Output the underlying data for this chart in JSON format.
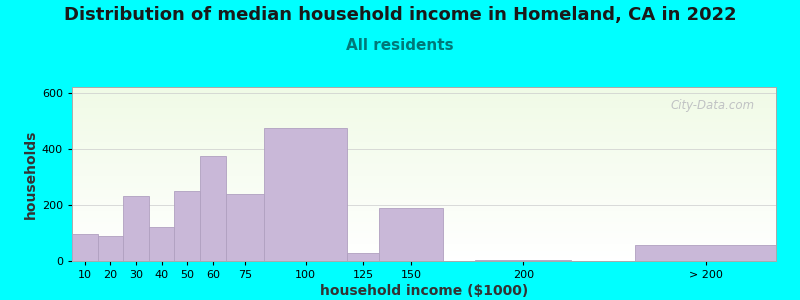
{
  "title": "Distribution of median household income in Homeland, CA in 2022",
  "subtitle": "All residents",
  "xlabel": "household income ($1000)",
  "ylabel": "households",
  "background_color": "#00FFFF",
  "bar_color": "#c9b8d8",
  "bar_edge_color": "#b0a0c0",
  "categories": [
    "10",
    "20",
    "30",
    "40",
    "50",
    "60",
    "75",
    "100",
    "125",
    "150",
    "200",
    "> 200"
  ],
  "values": [
    95,
    88,
    230,
    120,
    250,
    375,
    240,
    475,
    30,
    190,
    5,
    58
  ],
  "bar_lefts": [
    5,
    15,
    25,
    35,
    45,
    55,
    65,
    80,
    112.5,
    125,
    162.5,
    225
  ],
  "bar_widths": [
    10,
    10,
    10,
    10,
    10,
    10,
    15,
    32.5,
    12.5,
    25,
    37.5,
    55
  ],
  "ylim": [
    0,
    620
  ],
  "yticks": [
    0,
    200,
    400,
    600
  ],
  "watermark": "City-Data.com",
  "title_fontsize": 13,
  "subtitle_fontsize": 11,
  "axis_label_fontsize": 10,
  "tick_fontsize": 8
}
